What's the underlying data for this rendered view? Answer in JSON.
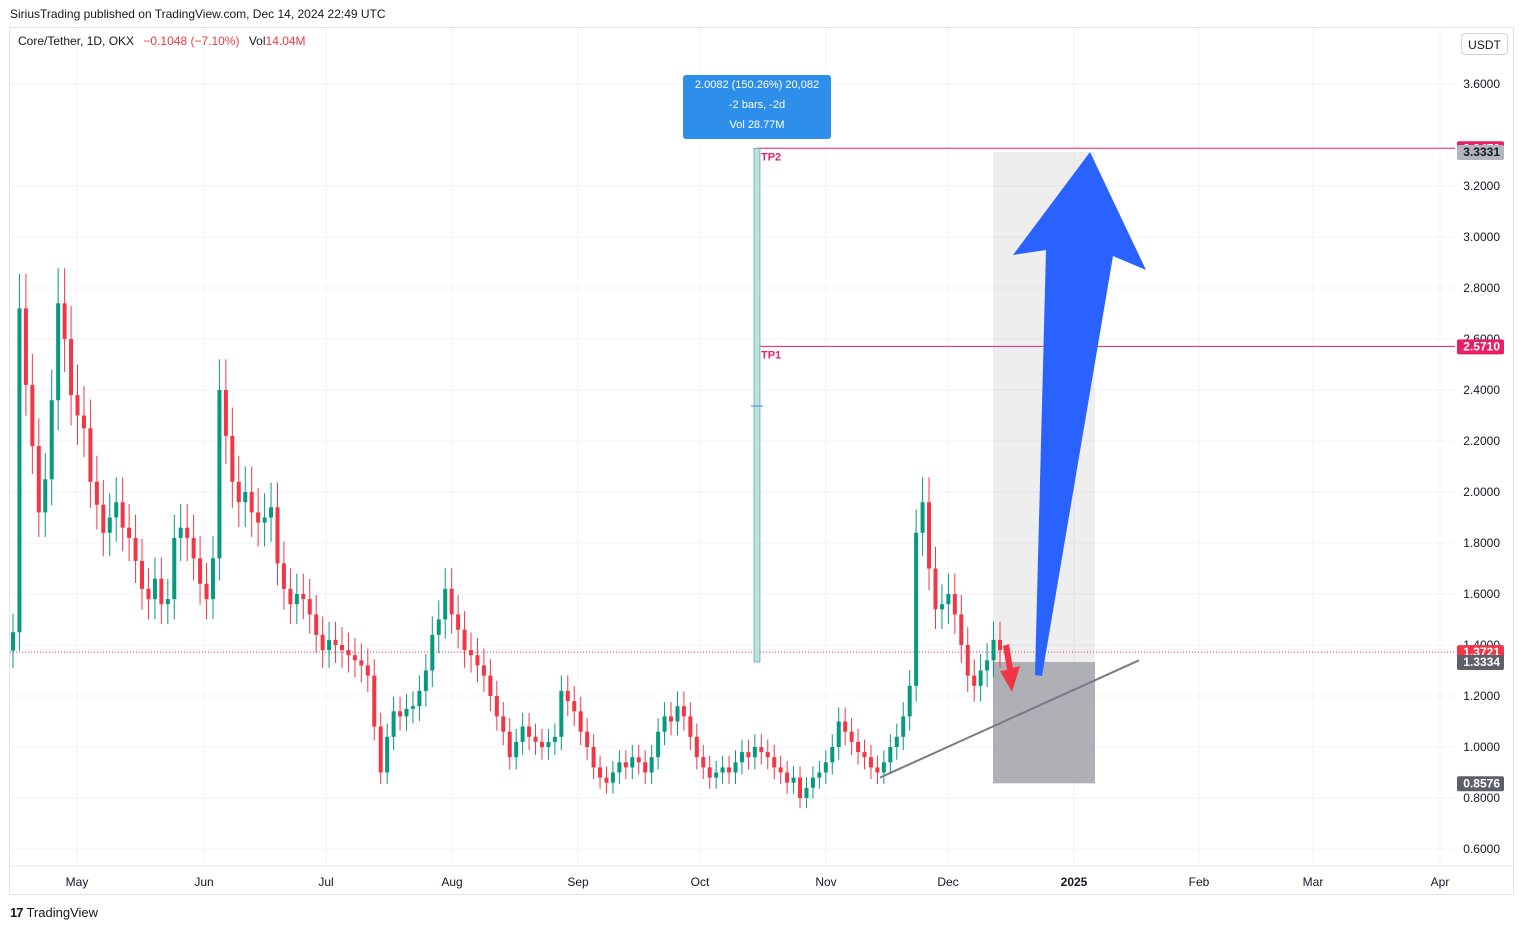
{
  "header": {
    "publisher_line": "SiriusTrading published on TradingView.com, Dec 14, 2024 22:49 UTC"
  },
  "legend": {
    "symbol": "Core/Tether, 1D, OKX",
    "change": "−0.1048 (−7.10%)",
    "vol_label": "Vol",
    "vol_value": "14.04M"
  },
  "currency_button": "USDT",
  "footer": {
    "logo_mark": "17",
    "logo_text": "TradingView"
  },
  "measure_tooltip": {
    "line1": "2.0082 (150.26%) 20,082",
    "line2": "-2 bars, -2d",
    "line3": "Vol 28.77M"
  },
  "colors": {
    "up": "#089981",
    "down": "#f23645",
    "tp_line": "#e91e63",
    "arrow_blue": "#2962ff",
    "measure_blue": "#2d8fe9"
  },
  "chart_data": {
    "type": "candlestick",
    "y_axis": {
      "ticks": [
        "3.6000",
        "3.2000",
        "3.0000",
        "2.8000",
        "2.6000",
        "2.4000",
        "2.2000",
        "2.0000",
        "1.8000",
        "1.6000",
        "1.4000",
        "1.2000",
        "1.0000",
        "0.8000",
        "0.6000"
      ],
      "range": [
        0.55,
        3.75
      ]
    },
    "x_axis": {
      "ticks": [
        "May",
        "Jun",
        "Jul",
        "Aug",
        "Sep",
        "Oct",
        "Nov",
        "Dec",
        "2025",
        "Feb",
        "Mar",
        "Apr"
      ]
    },
    "price_labels": [
      {
        "value": "3.3479",
        "kind": "tp2"
      },
      {
        "value": "3.3331",
        "kind": "target-box-top"
      },
      {
        "value": "2.5710",
        "kind": "tp1"
      },
      {
        "value": "1.3721",
        "kind": "last-price"
      },
      {
        "value": "1.3334",
        "kind": "entry"
      },
      {
        "value": "0.8576",
        "kind": "stop"
      }
    ],
    "annotations": {
      "tp1": "TP1",
      "tp2": "TP2"
    },
    "levels": {
      "tp2": 3.3479,
      "tp1": 2.571,
      "last": 1.3721,
      "entry": 1.3334,
      "stop": 0.8576,
      "box_top": 3.3331
    },
    "closes": [
      1.45,
      2.72,
      2.42,
      2.18,
      1.92,
      2.05,
      2.36,
      2.74,
      2.6,
      2.38,
      2.3,
      2.25,
      2.04,
      1.95,
      1.84,
      1.9,
      1.96,
      1.86,
      1.82,
      1.73,
      1.62,
      1.58,
      1.66,
      1.56,
      1.58,
      1.82,
      1.86,
      1.82,
      1.74,
      1.64,
      1.58,
      1.74,
      2.4,
      2.22,
      2.04,
      1.96,
      2.0,
      1.92,
      1.88,
      1.9,
      1.94,
      1.72,
      1.62,
      1.56,
      1.6,
      1.58,
      1.52,
      1.44,
      1.38,
      1.42,
      1.4,
      1.38,
      1.36,
      1.34,
      1.32,
      1.28,
      1.08,
      0.9,
      1.04,
      1.14,
      1.12,
      1.15,
      1.16,
      1.22,
      1.3,
      1.44,
      1.5,
      1.62,
      1.52,
      1.46,
      1.38,
      1.36,
      1.32,
      1.28,
      1.2,
      1.12,
      1.06,
      0.96,
      1.02,
      1.08,
      1.04,
      1.02,
      1.0,
      1.02,
      1.04,
      1.22,
      1.18,
      1.14,
      1.06,
      1.0,
      0.92,
      0.88,
      0.86,
      0.9,
      0.94,
      0.92,
      0.96,
      0.94,
      0.9,
      0.96,
      1.06,
      1.12,
      1.1,
      1.16,
      1.12,
      1.04,
      0.96,
      0.92,
      0.88,
      0.9,
      0.92,
      0.9,
      0.94,
      0.98,
      0.96,
      1.0,
      0.98,
      0.96,
      0.92,
      0.9,
      0.86,
      0.88,
      0.8,
      0.84,
      0.88,
      0.9,
      0.94,
      1.0,
      1.1,
      1.06,
      1.02,
      0.98,
      0.96,
      0.92,
      0.9,
      0.94,
      1.0,
      1.04,
      1.12,
      1.24,
      1.84,
      1.96,
      1.7,
      1.54,
      1.56,
      1.6,
      1.52,
      1.4,
      1.28,
      1.24,
      1.3,
      1.34,
      1.42,
      1.38
    ]
  }
}
